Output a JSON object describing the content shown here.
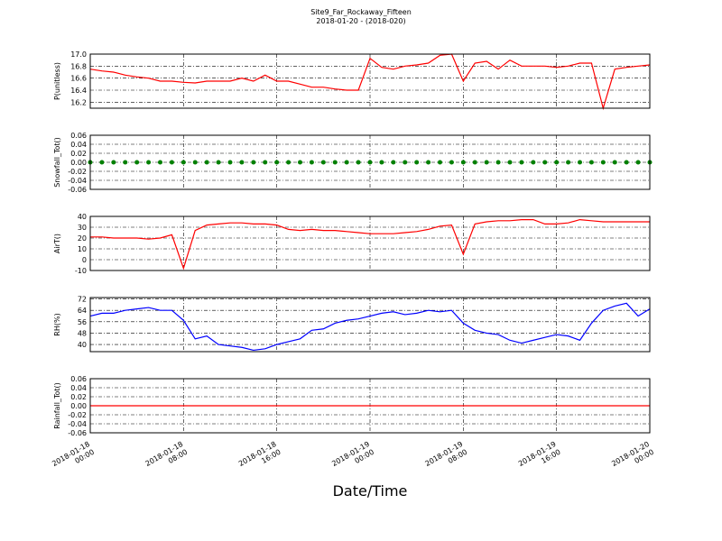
{
  "chart_data": [
    {
      "type": "line",
      "title": "Site9_Far_Rockaway_Fifteen",
      "subtitle": "2018-01-20 - (2018-020)",
      "ylabel": "P(unitless)",
      "xlim": [
        "2018-01-18 00:00",
        "2018-01-20 00:00"
      ],
      "ylim": [
        16.1,
        17.0
      ],
      "yticks": [
        16.2,
        16.4,
        16.6,
        16.8,
        {
          "value": 17,
          "label": "17.0"
        }
      ],
      "series": [
        {
          "color": "#ff0000",
          "values": [
            16.75,
            16.72,
            16.7,
            16.65,
            16.62,
            16.6,
            16.55,
            16.55,
            16.53,
            16.52,
            16.55,
            16.55,
            16.55,
            16.6,
            16.55,
            16.65,
            16.55,
            16.55,
            16.5,
            16.45,
            16.45,
            16.42,
            16.4,
            16.4,
            16.93,
            16.78,
            16.75,
            16.8,
            16.82,
            16.85,
            16.98,
            17.0,
            16.55,
            16.85,
            16.88,
            16.75,
            16.9,
            16.8,
            16.8,
            16.8,
            16.78,
            16.8,
            16.85,
            16.85,
            16.1,
            16.75,
            16.78,
            16.8,
            16.82
          ]
        }
      ]
    },
    {
      "type": "scatter",
      "ylabel": "Snowfall_Tot()",
      "xlim": [
        "2018-01-18 00:00",
        "2018-01-20 00:00"
      ],
      "ylim": [
        -0.06,
        0.06
      ],
      "yticks": [
        -0.06,
        -0.04,
        -0.02,
        {
          "value": 0,
          "label": "0.00"
        },
        0.02,
        0.04,
        0.06
      ],
      "series": [
        {
          "color": "#008000",
          "values": [
            0,
            0,
            0,
            0,
            0,
            0,
            0,
            0,
            0,
            0,
            0,
            0,
            0,
            0,
            0,
            0,
            0,
            0,
            0,
            0,
            0,
            0,
            0,
            0,
            0,
            0,
            0,
            0,
            0,
            0,
            0,
            0,
            0,
            0,
            0,
            0,
            0,
            0,
            0,
            0,
            0,
            0,
            0,
            0,
            0,
            0,
            0,
            0,
            0
          ]
        }
      ]
    },
    {
      "type": "line",
      "ylabel": "AirT()",
      "xlim": [
        "2018-01-18 00:00",
        "2018-01-20 00:00"
      ],
      "ylim": [
        -10,
        40
      ],
      "yticks": [
        -10,
        0,
        10,
        20,
        30,
        40
      ],
      "series": [
        {
          "color": "#ff0000",
          "values": [
            21,
            21,
            20,
            20,
            20,
            19,
            20,
            23,
            -8,
            27,
            32,
            33,
            34,
            34,
            33,
            33,
            32,
            28,
            27,
            28,
            27,
            27,
            26,
            25,
            24,
            24,
            24,
            25,
            26,
            28,
            31,
            32,
            5,
            33,
            35,
            36,
            36,
            37,
            37,
            33,
            33,
            34,
            37,
            36,
            35,
            35,
            35,
            35,
            35
          ]
        }
      ]
    },
    {
      "type": "line",
      "ylabel": "RH(%)",
      "xlim": [
        "2018-01-18 00:00",
        "2018-01-20 00:00"
      ],
      "ylim": [
        35,
        73
      ],
      "yticks": [
        40,
        48,
        56,
        64,
        72
      ],
      "series": [
        {
          "color": "#0000ff",
          "values": [
            60,
            62,
            62,
            64,
            65,
            66,
            64,
            64,
            57,
            44,
            46,
            40,
            39,
            38,
            36,
            37,
            40,
            42,
            44,
            50,
            51,
            55,
            57,
            58,
            60,
            62,
            63,
            61,
            62,
            64,
            63,
            64,
            55,
            50,
            48,
            47,
            43,
            41,
            43,
            45,
            47,
            46,
            43,
            55,
            64,
            67,
            69,
            60,
            65
          ]
        }
      ]
    },
    {
      "type": "line",
      "ylabel": "Rainfall_Tot()",
      "xlabel": "Date/Time",
      "xlim": [
        "2018-01-18 00:00",
        "2018-01-20 00:00"
      ],
      "ylim": [
        -0.06,
        0.06
      ],
      "yticks": [
        -0.06,
        -0.04,
        -0.02,
        {
          "value": 0,
          "label": "0.00"
        },
        0.02,
        0.04,
        0.06
      ],
      "xticks": [
        "2018-01-18 00:00",
        "2018-01-18 08:00",
        "2018-01-18 16:00",
        "2018-01-19 00:00",
        "2018-01-19 08:00",
        "2018-01-19 16:00",
        "2018-01-20 00:00"
      ],
      "series": [
        {
          "color": "#ff0000",
          "values": [
            0,
            0,
            0,
            0,
            0,
            0,
            0,
            0,
            0,
            0,
            0,
            0,
            0,
            0,
            0,
            0,
            0,
            0,
            0,
            0,
            0,
            0,
            0,
            0,
            0,
            0,
            0,
            0,
            0,
            0,
            0,
            0,
            0,
            0,
            0,
            0,
            0,
            0,
            0,
            0,
            0,
            0,
            0,
            0,
            0,
            0,
            0,
            0,
            0
          ]
        }
      ]
    },
    {
      "x": [
        "2018-01-18 00:00",
        "2018-01-18 01:00",
        "2018-01-18 02:00",
        "2018-01-18 03:00",
        "2018-01-18 04:00",
        "2018-01-18 05:00",
        "2018-01-18 06:00",
        "2018-01-18 07:00",
        "2018-01-18 08:00",
        "2018-01-18 09:00",
        "2018-01-18 10:00",
        "2018-01-18 11:00",
        "2018-01-18 12:00",
        "2018-01-18 13:00",
        "2018-01-18 14:00",
        "2018-01-18 15:00",
        "2018-01-18 16:00",
        "2018-01-18 17:00",
        "2018-01-18 18:00",
        "2018-01-18 19:00",
        "2018-01-18 20:00",
        "2018-01-18 21:00",
        "2018-01-18 22:00",
        "2018-01-18 23:00",
        "2018-01-19 00:00",
        "2018-01-19 01:00",
        "2018-01-19 02:00",
        "2018-01-19 03:00",
        "2018-01-19 04:00",
        "2018-01-19 05:00",
        "2018-01-19 06:00",
        "2018-01-19 07:00",
        "2018-01-19 08:00",
        "2018-01-19 09:00",
        "2018-01-19 10:00",
        "2018-01-19 11:00",
        "2018-01-19 12:00",
        "2018-01-19 13:00",
        "2018-01-19 14:00",
        "2018-01-19 15:00",
        "2018-01-19 16:00",
        "2018-01-19 17:00",
        "2018-01-19 18:00",
        "2018-01-19 19:00",
        "2018-01-19 20:00",
        "2018-01-19 21:00",
        "2018-01-19 22:00",
        "2018-01-19 23:00",
        "2018-01-20 00:00"
      ]
    }
  ]
}
